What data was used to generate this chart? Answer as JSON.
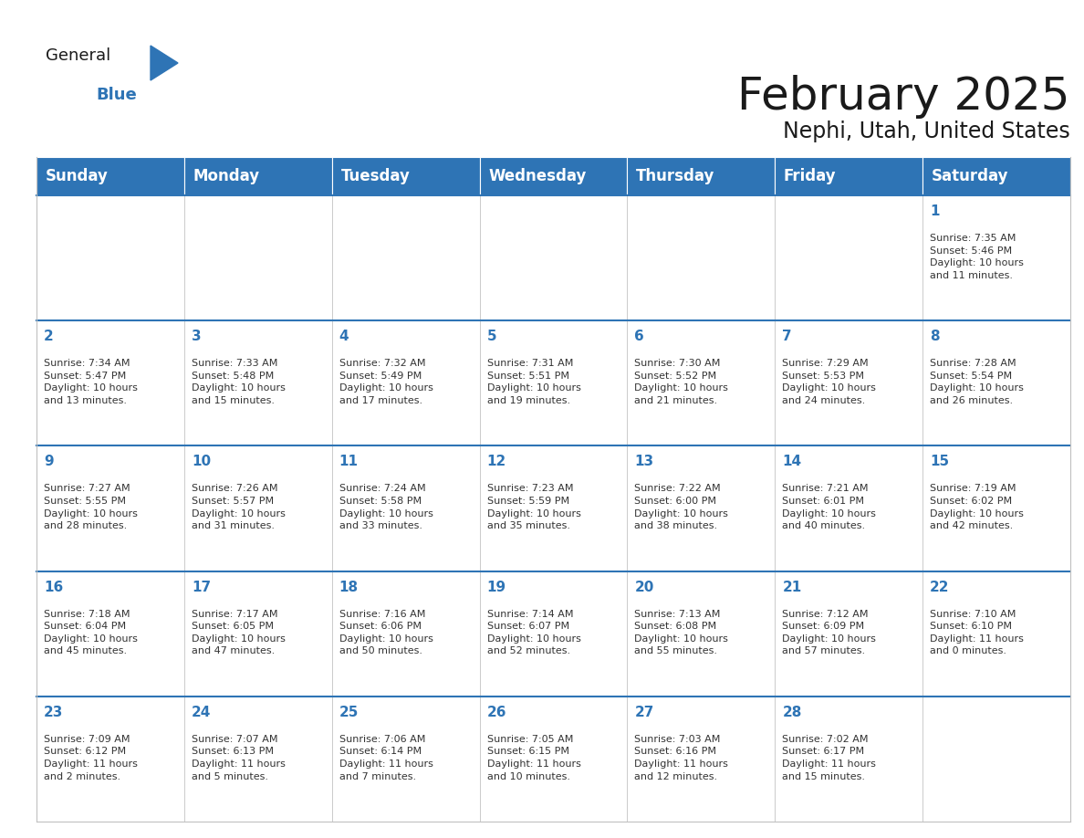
{
  "title": "February 2025",
  "subtitle": "Nephi, Utah, United States",
  "header_color": "#2E74B5",
  "header_text_color": "#FFFFFF",
  "border_color": "#2E74B5",
  "cell_line_color": "#AAAAAA",
  "text_color": "#333333",
  "day_number_color": "#2E74B5",
  "day_headers": [
    "Sunday",
    "Monday",
    "Tuesday",
    "Wednesday",
    "Thursday",
    "Friday",
    "Saturday"
  ],
  "calendar_data": [
    [
      {
        "day": "",
        "info": ""
      },
      {
        "day": "",
        "info": ""
      },
      {
        "day": "",
        "info": ""
      },
      {
        "day": "",
        "info": ""
      },
      {
        "day": "",
        "info": ""
      },
      {
        "day": "",
        "info": ""
      },
      {
        "day": "1",
        "info": "Sunrise: 7:35 AM\nSunset: 5:46 PM\nDaylight: 10 hours\nand 11 minutes."
      }
    ],
    [
      {
        "day": "2",
        "info": "Sunrise: 7:34 AM\nSunset: 5:47 PM\nDaylight: 10 hours\nand 13 minutes."
      },
      {
        "day": "3",
        "info": "Sunrise: 7:33 AM\nSunset: 5:48 PM\nDaylight: 10 hours\nand 15 minutes."
      },
      {
        "day": "4",
        "info": "Sunrise: 7:32 AM\nSunset: 5:49 PM\nDaylight: 10 hours\nand 17 minutes."
      },
      {
        "day": "5",
        "info": "Sunrise: 7:31 AM\nSunset: 5:51 PM\nDaylight: 10 hours\nand 19 minutes."
      },
      {
        "day": "6",
        "info": "Sunrise: 7:30 AM\nSunset: 5:52 PM\nDaylight: 10 hours\nand 21 minutes."
      },
      {
        "day": "7",
        "info": "Sunrise: 7:29 AM\nSunset: 5:53 PM\nDaylight: 10 hours\nand 24 minutes."
      },
      {
        "day": "8",
        "info": "Sunrise: 7:28 AM\nSunset: 5:54 PM\nDaylight: 10 hours\nand 26 minutes."
      }
    ],
    [
      {
        "day": "9",
        "info": "Sunrise: 7:27 AM\nSunset: 5:55 PM\nDaylight: 10 hours\nand 28 minutes."
      },
      {
        "day": "10",
        "info": "Sunrise: 7:26 AM\nSunset: 5:57 PM\nDaylight: 10 hours\nand 31 minutes."
      },
      {
        "day": "11",
        "info": "Sunrise: 7:24 AM\nSunset: 5:58 PM\nDaylight: 10 hours\nand 33 minutes."
      },
      {
        "day": "12",
        "info": "Sunrise: 7:23 AM\nSunset: 5:59 PM\nDaylight: 10 hours\nand 35 minutes."
      },
      {
        "day": "13",
        "info": "Sunrise: 7:22 AM\nSunset: 6:00 PM\nDaylight: 10 hours\nand 38 minutes."
      },
      {
        "day": "14",
        "info": "Sunrise: 7:21 AM\nSunset: 6:01 PM\nDaylight: 10 hours\nand 40 minutes."
      },
      {
        "day": "15",
        "info": "Sunrise: 7:19 AM\nSunset: 6:02 PM\nDaylight: 10 hours\nand 42 minutes."
      }
    ],
    [
      {
        "day": "16",
        "info": "Sunrise: 7:18 AM\nSunset: 6:04 PM\nDaylight: 10 hours\nand 45 minutes."
      },
      {
        "day": "17",
        "info": "Sunrise: 7:17 AM\nSunset: 6:05 PM\nDaylight: 10 hours\nand 47 minutes."
      },
      {
        "day": "18",
        "info": "Sunrise: 7:16 AM\nSunset: 6:06 PM\nDaylight: 10 hours\nand 50 minutes."
      },
      {
        "day": "19",
        "info": "Sunrise: 7:14 AM\nSunset: 6:07 PM\nDaylight: 10 hours\nand 52 minutes."
      },
      {
        "day": "20",
        "info": "Sunrise: 7:13 AM\nSunset: 6:08 PM\nDaylight: 10 hours\nand 55 minutes."
      },
      {
        "day": "21",
        "info": "Sunrise: 7:12 AM\nSunset: 6:09 PM\nDaylight: 10 hours\nand 57 minutes."
      },
      {
        "day": "22",
        "info": "Sunrise: 7:10 AM\nSunset: 6:10 PM\nDaylight: 11 hours\nand 0 minutes."
      }
    ],
    [
      {
        "day": "23",
        "info": "Sunrise: 7:09 AM\nSunset: 6:12 PM\nDaylight: 11 hours\nand 2 minutes."
      },
      {
        "day": "24",
        "info": "Sunrise: 7:07 AM\nSunset: 6:13 PM\nDaylight: 11 hours\nand 5 minutes."
      },
      {
        "day": "25",
        "info": "Sunrise: 7:06 AM\nSunset: 6:14 PM\nDaylight: 11 hours\nand 7 minutes."
      },
      {
        "day": "26",
        "info": "Sunrise: 7:05 AM\nSunset: 6:15 PM\nDaylight: 11 hours\nand 10 minutes."
      },
      {
        "day": "27",
        "info": "Sunrise: 7:03 AM\nSunset: 6:16 PM\nDaylight: 11 hours\nand 12 minutes."
      },
      {
        "day": "28",
        "info": "Sunrise: 7:02 AM\nSunset: 6:17 PM\nDaylight: 11 hours\nand 15 minutes."
      },
      {
        "day": "",
        "info": ""
      }
    ]
  ],
  "figsize": [
    11.88,
    9.18
  ],
  "dpi": 100,
  "title_fontsize": 36,
  "subtitle_fontsize": 17,
  "header_fontsize": 12,
  "day_num_fontsize": 11,
  "info_fontsize": 8,
  "logo_general_fontsize": 13,
  "logo_blue_fontsize": 13
}
